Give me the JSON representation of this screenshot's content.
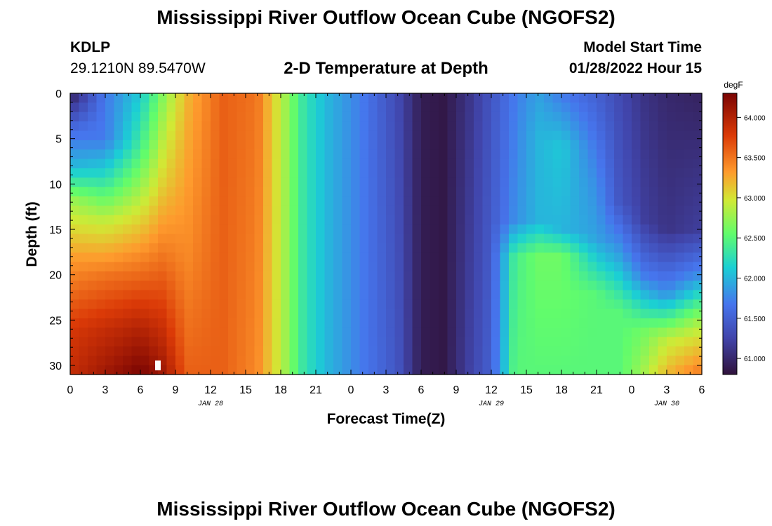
{
  "page": {
    "title": "Mississippi River Outflow Ocean Cube (NGOFS2)",
    "title_repeat": "Mississippi River Outflow Ocean Cube (NGOFS2)"
  },
  "header": {
    "station": "KDLP",
    "coords": "29.1210N  89.5470W",
    "subtitle": "2-D Temperature at Depth",
    "model_start_label": "Model Start Time",
    "model_start_value": "01/28/2022 Hour 15"
  },
  "chart_data": {
    "type": "heatmap",
    "title": "2-D Temperature at Depth",
    "xlabel": "Forecast Time(Z)",
    "ylabel": "Depth (ft)",
    "x_tick_labels": [
      "0",
      "3",
      "6",
      "9",
      "12",
      "15",
      "18",
      "21",
      "0",
      "3",
      "6",
      "9",
      "12",
      "15",
      "18",
      "21",
      "0",
      "3",
      "6"
    ],
    "date_labels": [
      {
        "text": "JAN 28",
        "at_hours": 12
      },
      {
        "text": "JAN 29",
        "at_hours": 36
      },
      {
        "text": "JAN 30",
        "at_hours": 51
      }
    ],
    "x_range_hours": [
      0,
      54
    ],
    "y_ticks": [
      0,
      5,
      10,
      15,
      20,
      25,
      30
    ],
    "y_range_ft": [
      0,
      31
    ],
    "colorbar": {
      "unit": "degF",
      "ticks": [
        "64.000",
        "63.500",
        "63.000",
        "62.500",
        "62.000",
        "61.500",
        "61.000"
      ],
      "range": [
        60.8,
        64.3
      ]
    },
    "temperature_columns": [
      {
        "hour": 0,
        "depth_profile": [
          [
            0,
            60.9
          ],
          [
            4,
            61.6
          ],
          [
            8,
            62.0
          ],
          [
            12,
            62.8
          ],
          [
            18,
            63.3
          ],
          [
            26,
            63.8
          ],
          [
            31,
            63.9
          ]
        ]
      },
      {
        "hour": 3,
        "depth_profile": [
          [
            0,
            61.7
          ],
          [
            5,
            61.7
          ],
          [
            9,
            62.2
          ],
          [
            14,
            62.9
          ],
          [
            20,
            63.5
          ],
          [
            26,
            63.9
          ],
          [
            31,
            64.1
          ]
        ]
      },
      {
        "hour": 6,
        "depth_profile": [
          [
            0,
            62.1
          ],
          [
            6,
            62.4
          ],
          [
            12,
            62.9
          ],
          [
            18,
            63.4
          ],
          [
            26,
            64.0
          ],
          [
            31,
            64.3
          ]
        ]
      },
      {
        "hour": 8,
        "depth_profile": [
          [
            0,
            62.7
          ],
          [
            10,
            63.1
          ],
          [
            20,
            63.6
          ],
          [
            31,
            64.1
          ]
        ]
      },
      {
        "hour": 10,
        "depth_profile": [
          [
            0,
            63.2
          ],
          [
            18,
            63.4
          ],
          [
            31,
            63.6
          ]
        ]
      },
      {
        "hour": 13,
        "depth_profile": [
          [
            0,
            63.6
          ],
          [
            31,
            63.6
          ]
        ]
      },
      {
        "hour": 16,
        "depth_profile": [
          [
            0,
            63.5
          ],
          [
            31,
            63.4
          ]
        ]
      },
      {
        "hour": 18,
        "depth_profile": [
          [
            0,
            62.9
          ],
          [
            31,
            62.9
          ]
        ]
      },
      {
        "hour": 20,
        "depth_profile": [
          [
            0,
            62.3
          ],
          [
            31,
            62.3
          ]
        ]
      },
      {
        "hour": 22,
        "depth_profile": [
          [
            0,
            62.0
          ],
          [
            31,
            62.0
          ]
        ]
      },
      {
        "hour": 25,
        "depth_profile": [
          [
            0,
            61.7
          ],
          [
            31,
            61.7
          ]
        ]
      },
      {
        "hour": 28,
        "depth_profile": [
          [
            0,
            61.3
          ],
          [
            31,
            61.4
          ]
        ]
      },
      {
        "hour": 30,
        "depth_profile": [
          [
            0,
            60.9
          ],
          [
            31,
            60.9
          ]
        ]
      },
      {
        "hour": 32,
        "depth_profile": [
          [
            0,
            60.85
          ],
          [
            31,
            60.85
          ]
        ]
      },
      {
        "hour": 34,
        "depth_profile": [
          [
            0,
            61.1
          ],
          [
            31,
            61.2
          ]
        ]
      },
      {
        "hour": 36,
        "depth_profile": [
          [
            0,
            61.4
          ],
          [
            31,
            61.5
          ]
        ]
      },
      {
        "hour": 38,
        "depth_profile": [
          [
            0,
            61.7
          ],
          [
            14,
            61.8
          ],
          [
            18,
            62.4
          ],
          [
            31,
            62.5
          ]
        ]
      },
      {
        "hour": 40,
        "depth_profile": [
          [
            0,
            61.9
          ],
          [
            5,
            62.0
          ],
          [
            14,
            62.0
          ],
          [
            18,
            62.6
          ],
          [
            31,
            62.5
          ]
        ]
      },
      {
        "hour": 42,
        "depth_profile": [
          [
            0,
            61.7
          ],
          [
            6,
            62.1
          ],
          [
            15,
            62.0
          ],
          [
            18,
            62.6
          ],
          [
            31,
            62.5
          ]
        ]
      },
      {
        "hour": 45,
        "depth_profile": [
          [
            0,
            61.5
          ],
          [
            10,
            61.8
          ],
          [
            16,
            61.9
          ],
          [
            22,
            62.5
          ],
          [
            31,
            62.5
          ]
        ]
      },
      {
        "hour": 47,
        "depth_profile": [
          [
            0,
            61.3
          ],
          [
            12,
            61.4
          ],
          [
            18,
            61.9
          ],
          [
            24,
            62.5
          ],
          [
            31,
            62.5
          ]
        ]
      },
      {
        "hour": 49,
        "depth_profile": [
          [
            0,
            61.1
          ],
          [
            14,
            61.2
          ],
          [
            20,
            61.7
          ],
          [
            26,
            62.6
          ],
          [
            31,
            62.8
          ]
        ]
      },
      {
        "hour": 51,
        "depth_profile": [
          [
            0,
            61.0
          ],
          [
            15,
            61.1
          ],
          [
            22,
            61.8
          ],
          [
            27,
            62.9
          ],
          [
            31,
            63.2
          ]
        ]
      },
      {
        "hour": 54,
        "depth_profile": [
          [
            0,
            60.95
          ],
          [
            15,
            61.2
          ],
          [
            20,
            61.8
          ],
          [
            25,
            62.8
          ],
          [
            31,
            63.5
          ]
        ]
      }
    ],
    "marker": {
      "hour": 7.5,
      "depth_ft": 30
    }
  }
}
